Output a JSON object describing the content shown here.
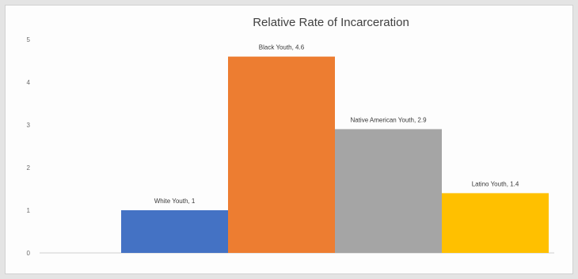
{
  "chart_data": {
    "type": "bar",
    "title": "Relative Rate of Incarceration",
    "xlabel": "",
    "ylabel": "",
    "categories": [
      "White Youth",
      "Black Youth",
      "Native American Youth",
      "Latino Youth"
    ],
    "values": [
      1,
      4.6,
      2.9,
      1.4
    ],
    "data_labels": [
      "White Youth, 1",
      "Black Youth, 4.6",
      "Native American Youth, 2.9",
      "Latino Youth, 1.4"
    ],
    "colors": [
      "#4472c4",
      "#ed7d31",
      "#a5a5a5",
      "#ffc000"
    ],
    "ylim": [
      0,
      5
    ],
    "yticks": [
      "0",
      "1",
      "2",
      "3",
      "4",
      "5"
    ],
    "grid": false,
    "legend": "none"
  }
}
